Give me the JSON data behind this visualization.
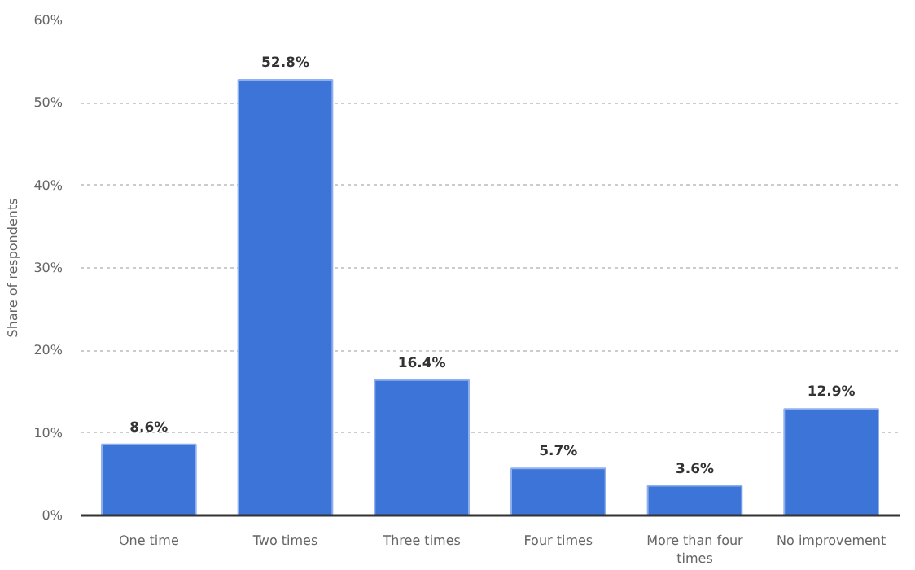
{
  "chart_data": {
    "type": "bar",
    "ylabel": "Share of respondents",
    "categories": [
      "One time",
      "Two times",
      "Three times",
      "Four times",
      "More than four times",
      "No improvement"
    ],
    "values": [
      8.6,
      52.8,
      16.4,
      5.7,
      3.6,
      12.9
    ],
    "color": "#3c74d8",
    "value_labels": [
      "8.6%",
      "52.8%",
      "16.4%",
      "5.7%",
      "3.6%",
      "12.9%"
    ],
    "ylim": [
      0,
      60
    ],
    "yticks": [
      {
        "value": 0,
        "label": "0%"
      },
      {
        "value": 10,
        "label": "10%"
      },
      {
        "value": 20,
        "label": "20%"
      },
      {
        "value": 30,
        "label": "30%"
      },
      {
        "value": 40,
        "label": "40%"
      },
      {
        "value": 50,
        "label": "50%"
      },
      {
        "value": 60,
        "label": "60%"
      }
    ],
    "grid": "y"
  }
}
